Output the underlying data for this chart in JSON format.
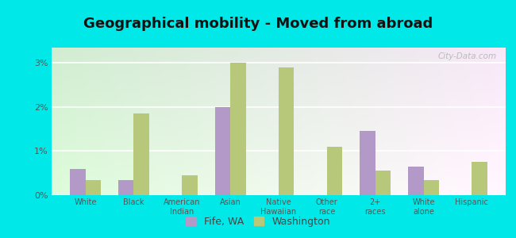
{
  "title": "Geographical mobility - Moved from abroad",
  "categories": [
    "White",
    "Black",
    "American\nIndian",
    "Asian",
    "Native\nHawaiian",
    "Other\nrace",
    "2+\nraces",
    "White\nalone",
    "Hispanic"
  ],
  "fife_values": [
    0.6,
    0.35,
    0.0,
    2.0,
    0.0,
    0.0,
    1.45,
    0.65,
    0.0
  ],
  "washington_values": [
    0.35,
    1.85,
    0.45,
    3.0,
    2.9,
    1.1,
    0.55,
    0.35,
    0.75
  ],
  "fife_color": "#b399c8",
  "washington_color": "#b8c87a",
  "outer_background": "#00e8e8",
  "ylim": [
    0,
    3.35
  ],
  "yticks": [
    0,
    1,
    2,
    3
  ],
  "ytick_labels": [
    "0%",
    "1%",
    "2%",
    "3%"
  ],
  "bar_width": 0.32,
  "legend_fife": "Fife, WA",
  "legend_washington": "Washington",
  "watermark": "City-Data.com",
  "title_fontsize": 14,
  "grid_color": "#cccccc"
}
